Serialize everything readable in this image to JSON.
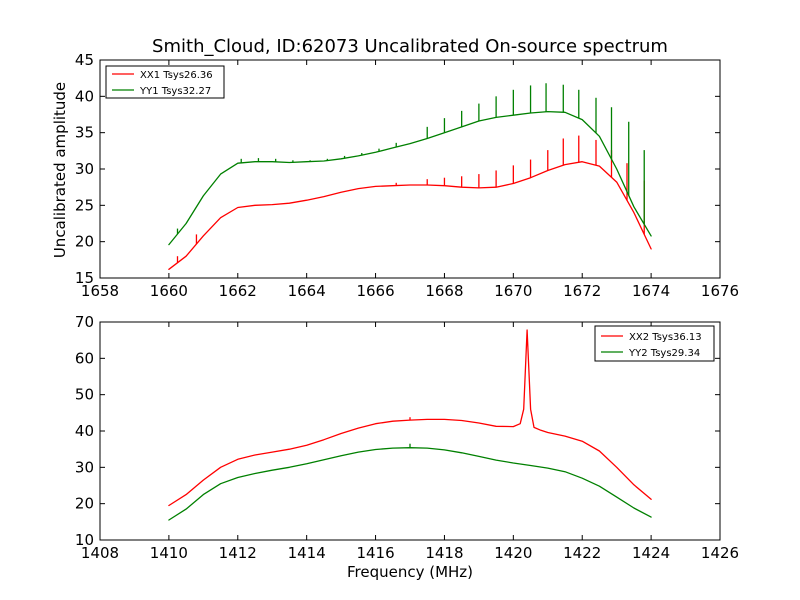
{
  "chart_data": [
    {
      "type": "line",
      "title": "Smith_Cloud, ID:62073 Uncalibrated On-source spectrum",
      "xlabel": "",
      "ylabel": "Uncalibrated amplitude",
      "xlim": [
        1658,
        1676
      ],
      "ylim": [
        15,
        45
      ],
      "xticks": [
        "1658",
        "1660",
        "1662",
        "1664",
        "1666",
        "1668",
        "1670",
        "1672",
        "1674",
        "1676"
      ],
      "yticks": [
        "15",
        "20",
        "25",
        "30",
        "35",
        "40",
        "45"
      ],
      "legend_position": "top-left",
      "grid": false,
      "series": [
        {
          "name": "XX1 Tsys26.36",
          "color": "#ff0000",
          "x": [
            1660.0,
            1660.5,
            1661.0,
            1661.5,
            1662.0,
            1662.5,
            1663.0,
            1663.5,
            1664.0,
            1664.5,
            1665.0,
            1665.5,
            1666.0,
            1666.5,
            1667.0,
            1667.5,
            1668.0,
            1668.5,
            1669.0,
            1669.5,
            1670.0,
            1670.5,
            1671.0,
            1671.5,
            1672.0,
            1672.5,
            1673.0,
            1673.5,
            1674.0
          ],
          "values": [
            16.2,
            18.0,
            20.8,
            23.3,
            24.7,
            25.0,
            25.1,
            25.3,
            25.7,
            26.2,
            26.8,
            27.3,
            27.6,
            27.7,
            27.8,
            27.8,
            27.7,
            27.5,
            27.4,
            27.5,
            28.0,
            28.8,
            29.8,
            30.6,
            31.0,
            30.4,
            28.2,
            24.0,
            19.0
          ],
          "spikes": [
            {
              "x": 1660.25,
              "top": 18.0
            },
            {
              "x": 1660.8,
              "top": 21.0
            },
            {
              "x": 1666.6,
              "top": 28.1
            },
            {
              "x": 1667.5,
              "top": 28.6
            },
            {
              "x": 1668.0,
              "top": 28.8
            },
            {
              "x": 1668.5,
              "top": 29.0
            },
            {
              "x": 1669.0,
              "top": 29.3
            },
            {
              "x": 1669.5,
              "top": 29.8
            },
            {
              "x": 1670.0,
              "top": 30.5
            },
            {
              "x": 1670.5,
              "top": 31.3
            },
            {
              "x": 1671.0,
              "top": 32.6
            },
            {
              "x": 1671.45,
              "top": 34.2
            },
            {
              "x": 1671.9,
              "top": 34.6
            },
            {
              "x": 1672.4,
              "top": 34.0
            },
            {
              "x": 1672.85,
              "top": 32.6
            },
            {
              "x": 1673.3,
              "top": 30.8
            },
            {
              "x": 1673.8,
              "top": 28.4
            }
          ]
        },
        {
          "name": "YY1 Tsys32.27",
          "color": "#008000",
          "x": [
            1660.0,
            1660.5,
            1661.0,
            1661.5,
            1662.0,
            1662.5,
            1663.0,
            1663.5,
            1664.0,
            1664.5,
            1665.0,
            1665.5,
            1666.0,
            1666.5,
            1667.0,
            1667.5,
            1668.0,
            1668.5,
            1669.0,
            1669.5,
            1670.0,
            1670.5,
            1671.0,
            1671.5,
            1672.0,
            1672.5,
            1673.0,
            1673.5,
            1674.0
          ],
          "values": [
            19.6,
            22.5,
            26.3,
            29.3,
            30.8,
            31.0,
            31.0,
            30.9,
            31.0,
            31.1,
            31.4,
            31.8,
            32.3,
            32.9,
            33.5,
            34.2,
            35.0,
            35.8,
            36.6,
            37.1,
            37.4,
            37.7,
            37.9,
            37.8,
            36.8,
            34.5,
            30.0,
            24.8,
            20.8
          ],
          "spikes": [
            {
              "x": 1660.25,
              "top": 21.8
            },
            {
              "x": 1662.1,
              "top": 31.4
            },
            {
              "x": 1662.6,
              "top": 31.5
            },
            {
              "x": 1663.1,
              "top": 31.4
            },
            {
              "x": 1663.6,
              "top": 31.2
            },
            {
              "x": 1664.1,
              "top": 31.2
            },
            {
              "x": 1664.6,
              "top": 31.4
            },
            {
              "x": 1665.1,
              "top": 31.8
            },
            {
              "x": 1665.6,
              "top": 32.2
            },
            {
              "x": 1666.1,
              "top": 32.8
            },
            {
              "x": 1666.6,
              "top": 33.6
            },
            {
              "x": 1667.5,
              "top": 35.8
            },
            {
              "x": 1668.0,
              "top": 37.0
            },
            {
              "x": 1668.5,
              "top": 38.0
            },
            {
              "x": 1669.0,
              "top": 39.0
            },
            {
              "x": 1669.5,
              "top": 40.0
            },
            {
              "x": 1670.0,
              "top": 40.9
            },
            {
              "x": 1670.5,
              "top": 41.5
            },
            {
              "x": 1670.95,
              "top": 41.8
            },
            {
              "x": 1671.45,
              "top": 41.6
            },
            {
              "x": 1671.9,
              "top": 40.9
            },
            {
              "x": 1672.4,
              "top": 39.8
            },
            {
              "x": 1672.85,
              "top": 38.5
            },
            {
              "x": 1673.35,
              "top": 36.5
            },
            {
              "x": 1673.8,
              "top": 32.6
            }
          ]
        }
      ]
    },
    {
      "type": "line",
      "title": "",
      "xlabel": "Frequency (MHz)",
      "ylabel": "",
      "xlim": [
        1408,
        1426
      ],
      "ylim": [
        10,
        70
      ],
      "xticks": [
        "1408",
        "1410",
        "1412",
        "1414",
        "1416",
        "1418",
        "1420",
        "1422",
        "1424",
        "1426"
      ],
      "yticks": [
        "10",
        "20",
        "30",
        "40",
        "50",
        "60",
        "70"
      ],
      "legend_position": "top-right",
      "grid": false,
      "series": [
        {
          "name": "XX2 Tsys36.13",
          "color": "#ff0000",
          "x": [
            1410.0,
            1410.5,
            1411.0,
            1411.5,
            1412.0,
            1412.5,
            1413.0,
            1413.5,
            1414.0,
            1414.5,
            1415.0,
            1415.5,
            1416.0,
            1416.5,
            1417.0,
            1417.5,
            1418.0,
            1418.5,
            1419.0,
            1419.5,
            1420.0,
            1420.2,
            1420.3,
            1420.4,
            1420.5,
            1420.6,
            1420.8,
            1421.0,
            1421.5,
            1422.0,
            1422.5,
            1423.0,
            1423.5,
            1424.0
          ],
          "values": [
            19.5,
            22.5,
            26.5,
            30.0,
            32.2,
            33.4,
            34.2,
            35.0,
            36.1,
            37.6,
            39.3,
            40.8,
            42.0,
            42.7,
            43.0,
            43.2,
            43.2,
            42.9,
            42.2,
            41.3,
            41.2,
            42.0,
            46.0,
            67.8,
            46.0,
            41.0,
            40.2,
            39.6,
            38.6,
            37.2,
            34.5,
            30.0,
            25.2,
            21.2
          ],
          "spikes": [
            {
              "x": 1417.0,
              "top": 43.8
            }
          ]
        },
        {
          "name": "YY2 Tsys29.34",
          "color": "#008000",
          "x": [
            1410.0,
            1410.5,
            1411.0,
            1411.5,
            1412.0,
            1412.5,
            1413.0,
            1413.5,
            1414.0,
            1414.5,
            1415.0,
            1415.5,
            1416.0,
            1416.5,
            1417.0,
            1417.5,
            1418.0,
            1418.5,
            1419.0,
            1419.5,
            1420.0,
            1420.5,
            1421.0,
            1421.5,
            1422.0,
            1422.5,
            1423.0,
            1423.5,
            1424.0
          ],
          "values": [
            15.5,
            18.5,
            22.5,
            25.5,
            27.2,
            28.3,
            29.2,
            30.0,
            31.0,
            32.1,
            33.2,
            34.2,
            34.9,
            35.3,
            35.4,
            35.3,
            34.8,
            34.0,
            33.0,
            32.0,
            31.2,
            30.5,
            29.8,
            28.8,
            27.0,
            24.8,
            21.8,
            18.8,
            16.3
          ],
          "spikes": [
            {
              "x": 1417.0,
              "top": 36.5
            }
          ]
        }
      ]
    }
  ]
}
